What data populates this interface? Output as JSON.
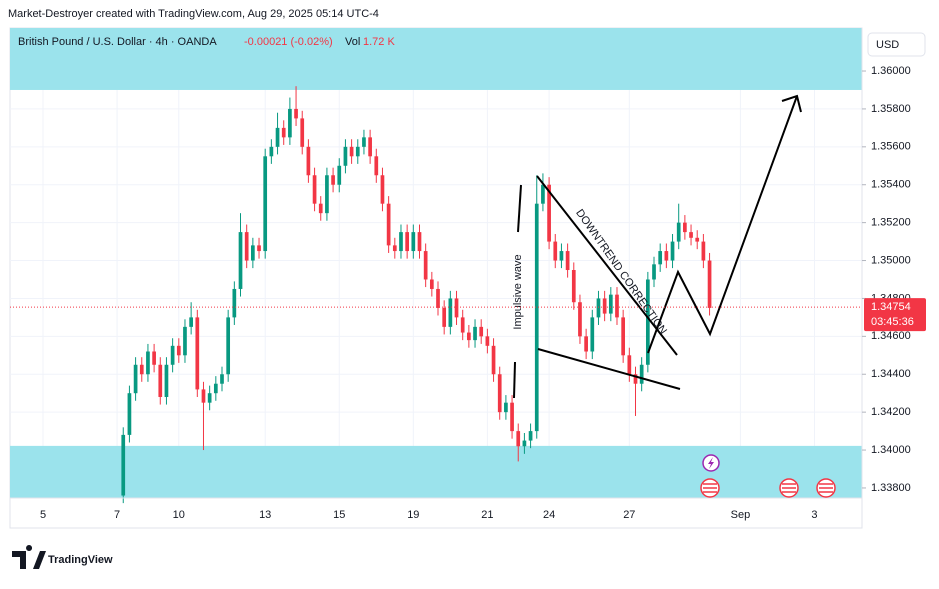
{
  "header": {
    "caption": "Market-Destroyer created with TradingView.com, Aug 29, 2025 05:14 UTC-4"
  },
  "chart_data": {
    "type": "candlestick",
    "symbol": "British Pound / U.S. Dollar · 4h · OANDA",
    "change": "-0.00021 (-0.02%)",
    "volume_label": "Vol",
    "volume": "1.72 K",
    "currency": "USD",
    "annotations": [
      "Impulsive wave",
      "DOWNTREND CORRECTION"
    ],
    "up_color": "#089981",
    "down_color": "#f23645",
    "zone_color": "#9be3ec",
    "grid": true,
    "x": [
      13,
      14,
      15,
      16,
      17,
      18,
      19,
      20,
      21,
      22,
      23,
      24,
      25,
      26,
      27,
      28,
      29,
      30,
      31,
      32,
      33,
      34,
      35,
      36,
      37,
      38,
      39,
      40,
      41,
      42,
      43,
      44,
      45,
      46,
      47,
      48,
      49,
      50,
      51,
      52,
      53,
      54,
      55,
      56,
      57,
      58,
      59,
      60,
      61,
      62,
      63,
      64,
      65,
      66,
      67,
      68,
      69,
      70,
      71,
      72,
      73,
      74,
      75,
      76,
      77,
      78,
      79,
      80,
      81,
      82,
      83,
      84,
      85,
      86,
      87,
      88,
      89,
      90,
      91,
      92,
      93,
      94,
      95,
      96,
      97,
      98,
      99,
      100,
      101,
      102,
      103,
      104,
      105,
      106,
      107,
      108
    ],
    "open": [
      1.3376,
      1.3408,
      1.343,
      1.3445,
      1.344,
      1.3452,
      1.3445,
      1.3428,
      1.3445,
      1.3455,
      1.345,
      1.3465,
      1.347,
      1.3432,
      1.3425,
      1.343,
      1.3435,
      1.344,
      1.347,
      1.3485,
      1.3515,
      1.35,
      1.3508,
      1.3505,
      1.3555,
      1.356,
      1.357,
      1.3565,
      1.358,
      1.3575,
      1.356,
      1.3545,
      1.353,
      1.3525,
      1.3545,
      1.354,
      1.355,
      1.356,
      1.3555,
      1.356,
      1.3565,
      1.3555,
      1.3545,
      1.353,
      1.3508,
      1.3505,
      1.3515,
      1.3505,
      1.3515,
      1.3505,
      1.349,
      1.3485,
      1.3475,
      1.3465,
      1.348,
      1.347,
      1.3462,
      1.3458,
      1.3465,
      1.346,
      1.3455,
      1.344,
      1.342,
      1.3425,
      1.341,
      1.3402,
      1.3405,
      1.341,
      1.353,
      1.354,
      1.351,
      1.35,
      1.3505,
      1.3495,
      1.3478,
      1.346,
      1.3452,
      1.347,
      1.348,
      1.3472,
      1.3482,
      1.347,
      1.345,
      1.344,
      1.3435,
      1.3445,
      1.349,
      1.3498,
      1.3505,
      1.35,
      1.351,
      1.352,
      1.3515,
      1.3512,
      1.351,
      1.35
    ],
    "high": [
      1.3412,
      1.3434,
      1.3449,
      1.3449,
      1.3456,
      1.3456,
      1.3449,
      1.3449,
      1.3459,
      1.3459,
      1.3469,
      1.3478,
      1.3474,
      1.3436,
      1.3434,
      1.3439,
      1.3444,
      1.3474,
      1.3489,
      1.3525,
      1.3519,
      1.3512,
      1.3512,
      1.3559,
      1.3564,
      1.3578,
      1.3574,
      1.3586,
      1.3592,
      1.3579,
      1.3564,
      1.3549,
      1.3534,
      1.3549,
      1.3549,
      1.3554,
      1.3564,
      1.3564,
      1.3564,
      1.3569,
      1.3569,
      1.3559,
      1.3549,
      1.3534,
      1.3512,
      1.3519,
      1.3519,
      1.3519,
      1.3519,
      1.3509,
      1.3494,
      1.3489,
      1.3479,
      1.3484,
      1.3484,
      1.3474,
      1.3466,
      1.3469,
      1.3469,
      1.3464,
      1.3459,
      1.3444,
      1.3429,
      1.3429,
      1.3414,
      1.3409,
      1.3414,
      1.3545,
      1.3546,
      1.3544,
      1.3514,
      1.3509,
      1.3509,
      1.3499,
      1.3482,
      1.3464,
      1.3474,
      1.3484,
      1.3484,
      1.3486,
      1.3486,
      1.3474,
      1.3454,
      1.3444,
      1.3449,
      1.3494,
      1.3502,
      1.3509,
      1.3509,
      1.3514,
      1.353,
      1.3524,
      1.3519,
      1.3516,
      1.3514,
      1.3504
    ],
    "low": [
      1.3372,
      1.3404,
      1.3426,
      1.3436,
      1.3436,
      1.3441,
      1.3424,
      1.3424,
      1.3441,
      1.3446,
      1.3446,
      1.3461,
      1.3428,
      1.34,
      1.3421,
      1.3426,
      1.3431,
      1.3436,
      1.3466,
      1.3481,
      1.3496,
      1.3496,
      1.3501,
      1.3501,
      1.3551,
      1.3556,
      1.3561,
      1.3561,
      1.3571,
      1.3556,
      1.3541,
      1.3526,
      1.3521,
      1.3521,
      1.3536,
      1.3536,
      1.3546,
      1.3551,
      1.3551,
      1.3556,
      1.3551,
      1.3541,
      1.3526,
      1.3504,
      1.3501,
      1.3501,
      1.3501,
      1.3501,
      1.3501,
      1.3486,
      1.3481,
      1.3471,
      1.3461,
      1.3461,
      1.3466,
      1.3458,
      1.3454,
      1.3454,
      1.3456,
      1.3451,
      1.3436,
      1.3416,
      1.3416,
      1.3406,
      1.3394,
      1.3398,
      1.3401,
      1.3406,
      1.3526,
      1.3506,
      1.3496,
      1.3496,
      1.3491,
      1.3474,
      1.3456,
      1.3448,
      1.3448,
      1.3466,
      1.3468,
      1.3468,
      1.3466,
      1.3446,
      1.3436,
      1.3418,
      1.3431,
      1.3441,
      1.3486,
      1.3494,
      1.3496,
      1.3496,
      1.3506,
      1.3511,
      1.3508,
      1.3506,
      1.3496,
      1.3471
    ],
    "close": [
      1.3408,
      1.343,
      1.3445,
      1.344,
      1.3452,
      1.3445,
      1.3428,
      1.3445,
      1.3455,
      1.345,
      1.3465,
      1.347,
      1.3432,
      1.3425,
      1.343,
      1.3435,
      1.344,
      1.347,
      1.3485,
      1.3515,
      1.35,
      1.3508,
      1.3505,
      1.3555,
      1.356,
      1.357,
      1.3565,
      1.358,
      1.3575,
      1.356,
      1.3545,
      1.353,
      1.3525,
      1.3545,
      1.354,
      1.355,
      1.356,
      1.3555,
      1.356,
      1.3565,
      1.3555,
      1.3545,
      1.353,
      1.3508,
      1.3505,
      1.3515,
      1.3505,
      1.3515,
      1.3505,
      1.349,
      1.3485,
      1.3475,
      1.3465,
      1.348,
      1.347,
      1.3462,
      1.3458,
      1.3465,
      1.346,
      1.3455,
      1.344,
      1.342,
      1.3425,
      1.341,
      1.3402,
      1.3405,
      1.341,
      1.353,
      1.354,
      1.351,
      1.35,
      1.3505,
      1.3495,
      1.3478,
      1.346,
      1.3452,
      1.347,
      1.348,
      1.3472,
      1.3482,
      1.347,
      1.345,
      1.344,
      1.3435,
      1.3445,
      1.349,
      1.3498,
      1.3505,
      1.35,
      1.351,
      1.352,
      1.3515,
      1.3512,
      1.351,
      1.35,
      1.3475
    ],
    "xlim": [
      -5.35,
      132.7
    ],
    "xticks": [
      {
        "value": 0,
        "label": "5"
      },
      {
        "value": 12,
        "label": "7"
      },
      {
        "value": 22,
        "label": "10"
      },
      {
        "value": 36,
        "label": "13"
      },
      {
        "value": 48,
        "label": "15"
      },
      {
        "value": 60,
        "label": "19"
      },
      {
        "value": 72,
        "label": "21"
      },
      {
        "value": 82,
        "label": "24"
      },
      {
        "value": 95,
        "label": "27"
      },
      {
        "value": 113,
        "label": "Sep"
      },
      {
        "value": 125,
        "label": "3"
      }
    ],
    "ylim": [
      1.33747,
      1.36227
    ],
    "yticks": [
      {
        "value": 1.338,
        "label": "1.33800"
      },
      {
        "value": 1.34,
        "label": "1.34000"
      },
      {
        "value": 1.342,
        "label": "1.34200"
      },
      {
        "value": 1.344,
        "label": "1.34400"
      },
      {
        "value": 1.346,
        "label": "1.34600"
      },
      {
        "value": 1.348,
        "label": "1.34800"
      },
      {
        "value": 1.35,
        "label": "1.35000"
      },
      {
        "value": 1.352,
        "label": "1.35200"
      },
      {
        "value": 1.354,
        "label": "1.35400"
      },
      {
        "value": 1.356,
        "label": "1.35600"
      },
      {
        "value": 1.358,
        "label": "1.35800"
      },
      {
        "value": 1.36,
        "label": "1.36000"
      }
    ],
    "zones": [
      [
        1.359,
        1.36227
      ],
      [
        1.33747,
        1.34022
      ]
    ],
    "last_price": 1.34754,
    "countdown": "03:45:36"
  },
  "footer": {
    "logo": "TradingView"
  }
}
